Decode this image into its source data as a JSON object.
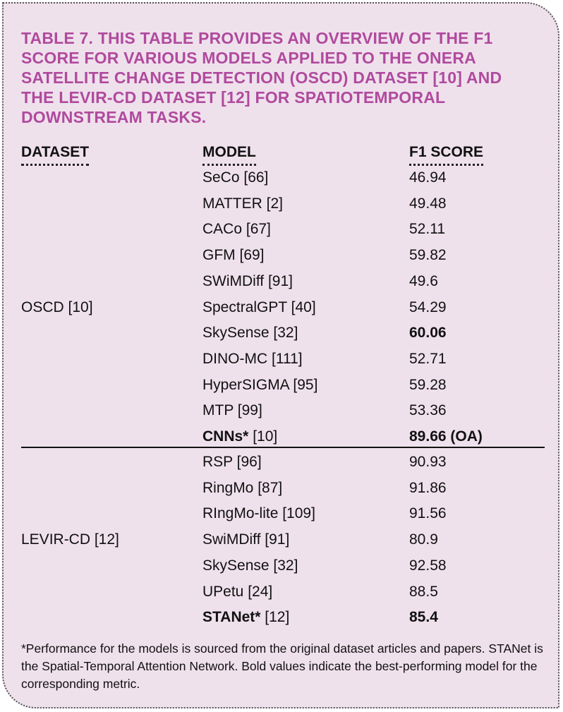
{
  "caption": "TABLE 7. THIS TABLE PROVIDES AN OVERVIEW OF THE F1 SCORE FOR VARIOUS MODELS APPLIED TO THE ONERA SATELLITE CHANGE DETECTION (OSCD) DATASET [10] AND THE LEVIR-CD DATASET [12] FOR SPATIOTEMPORAL DOWNSTREAM TASKS.",
  "headers": {
    "dataset": "DATASET",
    "model": "MODEL",
    "f1": "F1 SCORE"
  },
  "groups": [
    {
      "dataset": "OSCD [10]",
      "rows": [
        {
          "model": "SeCo",
          "ref": "[66]",
          "f1": "46.94"
        },
        {
          "model": "MATTER",
          "ref": "[2]",
          "f1": "49.48"
        },
        {
          "model": "CACo",
          "ref": "[67]",
          "f1": "52.11"
        },
        {
          "model": "GFM",
          "ref": "[69]",
          "f1": "59.82"
        },
        {
          "model": "SWiMDiff",
          "ref": "[91]",
          "f1": "49.6"
        },
        {
          "model": "SpectralGPT",
          "ref": "[40]",
          "f1": "54.29"
        },
        {
          "model": "SkySense",
          "ref": "[32]",
          "f1": "60.06",
          "f1_bold": true
        },
        {
          "model": "DINO-MC",
          "ref": "[111]",
          "f1": "52.71"
        },
        {
          "model": "HyperSIGMA",
          "ref": "[95]",
          "f1": "59.28"
        },
        {
          "model": "MTP",
          "ref": "[99]",
          "f1": "53.36"
        },
        {
          "model": "CNNs*",
          "ref": "[10]",
          "f1": "89.66 (OA)",
          "model_bold": true,
          "f1_bold": true
        }
      ]
    },
    {
      "dataset": "LEVIR-CD [12]",
      "rows": [
        {
          "model": "RSP",
          "ref": "[96]",
          "f1": "90.93"
        },
        {
          "model": "RingMo",
          "ref": "[87]",
          "f1": "91.86"
        },
        {
          "model": "RIngMo-lite",
          "ref": "[109]",
          "f1": "91.56"
        },
        {
          "model": "SwiMDiff",
          "ref": "[91]",
          "f1": "80.9"
        },
        {
          "model": "SkySense",
          "ref": "[32]",
          "f1": "92.58"
        },
        {
          "model": "UPetu",
          "ref": "[24]",
          "f1": "88.5"
        },
        {
          "model": "STANet*",
          "ref": "[12]",
          "f1": "85.4",
          "model_bold": true,
          "f1_bold": true
        }
      ]
    }
  ],
  "footnote": "*Performance for the models is sourced from the original dataset articles and papers. STANet is the Spatial-Temporal Attention Network. Bold values indicate the best-performing model for the corresponding metric."
}
